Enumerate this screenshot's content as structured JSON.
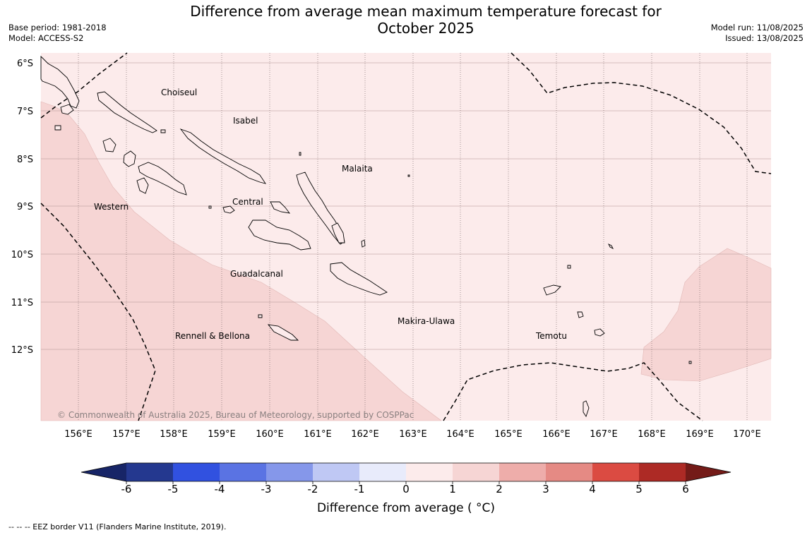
{
  "title_line1": "Difference from average mean maximum temperature forecast for",
  "title_line2": "October 2025",
  "base_period": "Base period: 1981-2018",
  "model": "Model: ACCESS-S2",
  "model_run": "Model run: 11/08/2025",
  "issued": "Issued: 13/08/2025",
  "copyright": "© Commonwealth of Australia 2025, Bureau of Meteorology, supported by COSPPac",
  "lat_labels": [
    "6°S",
    "7°S",
    "8°S",
    "9°S",
    "10°S",
    "11°S",
    "12°S"
  ],
  "lon_labels": [
    "156°E",
    "157°E",
    "158°E",
    "159°E",
    "160°E",
    "161°E",
    "162°E",
    "163°E",
    "164°E",
    "165°E",
    "166°E",
    "167°E",
    "168°E",
    "169°E",
    "170°E"
  ],
  "regions": [
    "Choiseul",
    "Isabel",
    "Malaita",
    "Western",
    "Central",
    "Guadalcanal",
    "Makira-Ulawa",
    "Rennell & Bellona",
    "Temotu"
  ],
  "colorbar": {
    "ticks": [
      "-6",
      "-5",
      "-4",
      "-3",
      "-2",
      "-1",
      "0",
      "1",
      "2",
      "3",
      "4",
      "5",
      "6"
    ],
    "colors": [
      "#24388f",
      "#2a40bb",
      "#3151e0",
      "#5a73e3",
      "#8597ea",
      "#bfc8f4",
      "#e8ebfb",
      "#fcebeb",
      "#f6d5d4",
      "#eeadaa",
      "#e58a84",
      "#db4b42",
      "#ad2a25"
    ],
    "under_color": "#172567",
    "over_color": "#741b18",
    "title": "Difference from average ( °C)"
  },
  "footer": "--  --  -- EEZ border V11 (Flanders Marine Institute, 2019).",
  "map_fill": {
    "zero_to_one": "#fcebeb",
    "one_to_two": "#f6d5d4"
  }
}
